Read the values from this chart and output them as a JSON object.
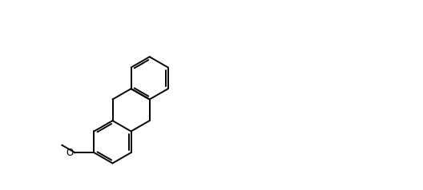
{
  "background_color": "#ffffff",
  "line_color": "#000000",
  "line_width": 1.4,
  "font_size": 8.5,
  "figsize": [
    5.28,
    2.38
  ],
  "dpi": 100,
  "xlim": [
    0,
    10.56
  ],
  "ylim": [
    0,
    4.76
  ]
}
